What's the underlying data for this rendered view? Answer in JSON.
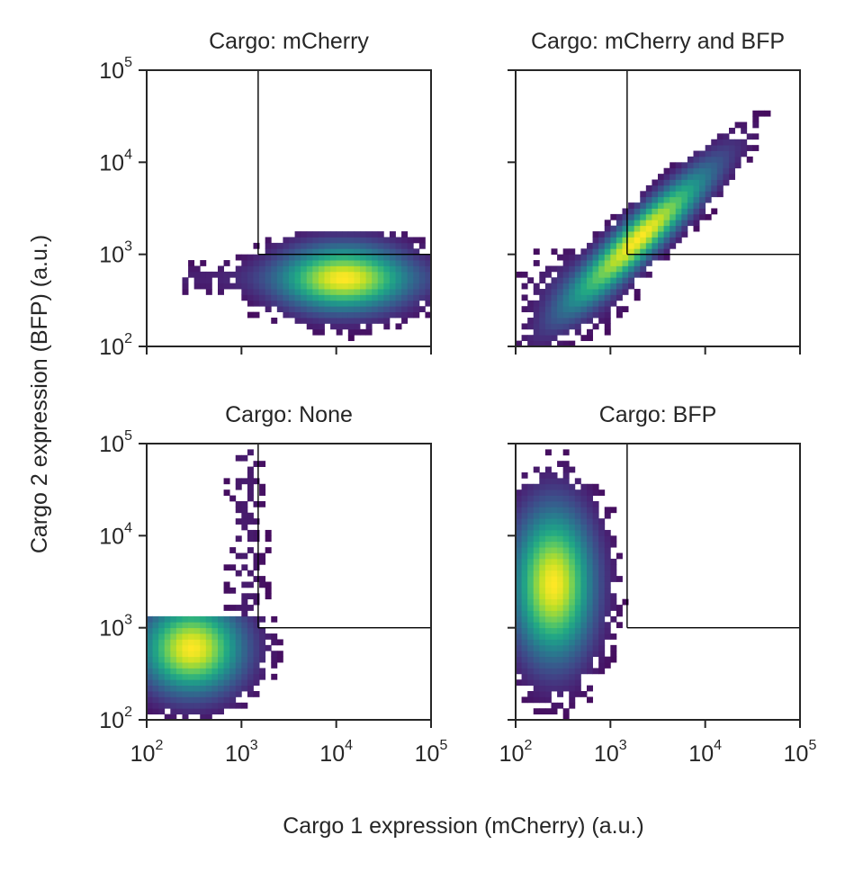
{
  "figure": {
    "xlabel": "Cargo 1 expression (mCherry) (a.u.)",
    "ylabel": "Cargo 2 expression (BFP) (a.u.)"
  },
  "chart_data": [
    {
      "type": "heatmap",
      "title": "Cargo: mCherry",
      "xscale": "log",
      "yscale": "log",
      "xlim": [
        100,
        100000
      ],
      "ylim": [
        100,
        100000
      ],
      "x_ticks": [
        "10^2",
        "10^3",
        "10^4",
        "10^5"
      ],
      "y_ticks": [
        "10^2",
        "10^3",
        "10^4",
        "10^5"
      ],
      "gate": {
        "x_min": 1500,
        "y_min": 1000
      },
      "density_peak": {
        "x": 12000,
        "y": 550
      },
      "colormap": "viridis",
      "grid": false
    },
    {
      "type": "heatmap",
      "title": "Cargo: mCherry and BFP",
      "xscale": "log",
      "yscale": "log",
      "xlim": [
        100,
        100000
      ],
      "ylim": [
        100,
        100000
      ],
      "x_ticks": [
        "10^2",
        "10^3",
        "10^4",
        "10^5"
      ],
      "y_ticks": [
        "10^2",
        "10^3",
        "10^4",
        "10^5"
      ],
      "gate": {
        "x_min": 1500,
        "y_min": 1000
      },
      "density_peak": {
        "x": 2000,
        "y": 1500
      },
      "colormap": "viridis",
      "grid": false
    },
    {
      "type": "heatmap",
      "title": "Cargo: None",
      "xscale": "log",
      "yscale": "log",
      "xlim": [
        100,
        100000
      ],
      "ylim": [
        100,
        100000
      ],
      "x_ticks": [
        "10^2",
        "10^3",
        "10^4",
        "10^5"
      ],
      "y_ticks": [
        "10^2",
        "10^3",
        "10^4",
        "10^5"
      ],
      "gate": {
        "x_min": 1500,
        "y_min": 1000
      },
      "density_peak": {
        "x": 300,
        "y": 600
      },
      "colormap": "viridis",
      "grid": false
    },
    {
      "type": "heatmap",
      "title": "Cargo: BFP",
      "xscale": "log",
      "yscale": "log",
      "xlim": [
        100,
        100000
      ],
      "ylim": [
        100,
        100000
      ],
      "x_ticks": [
        "10^2",
        "10^3",
        "10^4",
        "10^5"
      ],
      "y_ticks": [
        "10^2",
        "10^3",
        "10^4",
        "10^5"
      ],
      "gate": {
        "x_min": 1500,
        "y_min": 1000
      },
      "density_peak": {
        "x": 250,
        "y": 3000
      },
      "colormap": "viridis",
      "grid": false
    }
  ]
}
